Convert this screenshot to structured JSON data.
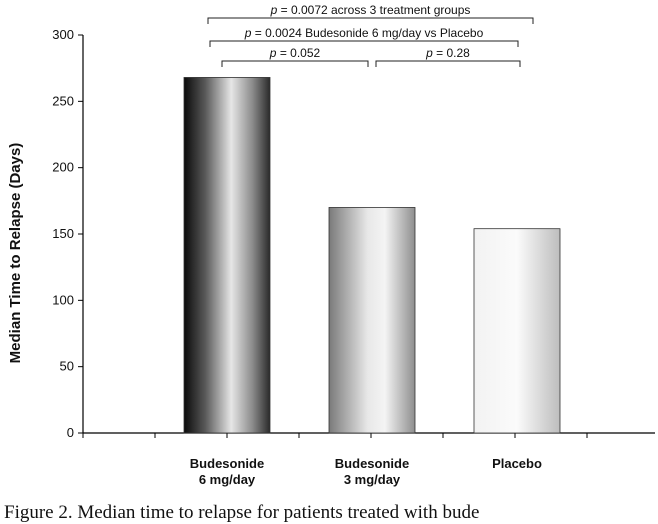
{
  "chart_data": {
    "type": "bar",
    "ylabel": "Median Time to Relapse (Days)",
    "ylim": [
      0,
      300
    ],
    "yticks": [
      0,
      50,
      100,
      150,
      200,
      250,
      300
    ],
    "categories": [
      {
        "lines": [
          "Budesonide",
          "6 mg/day"
        ]
      },
      {
        "lines": [
          "Budesonide",
          "3 mg/day"
        ]
      },
      {
        "lines": [
          "Placebo"
        ]
      }
    ],
    "values": [
      268,
      170,
      154
    ],
    "bar_styles": [
      "dark",
      "medium",
      "light"
    ],
    "annotations": [
      {
        "text_pre": "",
        "p": "p",
        "text": " = 0.0072 across 3 treatment groups",
        "from": 0,
        "to": 2,
        "level": 3
      },
      {
        "text_pre": "",
        "p": "p",
        "text": " = 0.0024 Budesonide 6 mg/day vs Placebo",
        "from": 0,
        "to": 2,
        "level": 2
      },
      {
        "text_pre": "",
        "p": "p",
        "text": " = 0.052",
        "from": 0,
        "to": 1,
        "level": 1
      },
      {
        "text_pre": "",
        "p": "p",
        "text": " = 0.28",
        "from": 1,
        "to": 2,
        "level": 1
      }
    ],
    "grid": false
  },
  "caption": "Figure 2. Median time to relapse for patients treated with bude"
}
